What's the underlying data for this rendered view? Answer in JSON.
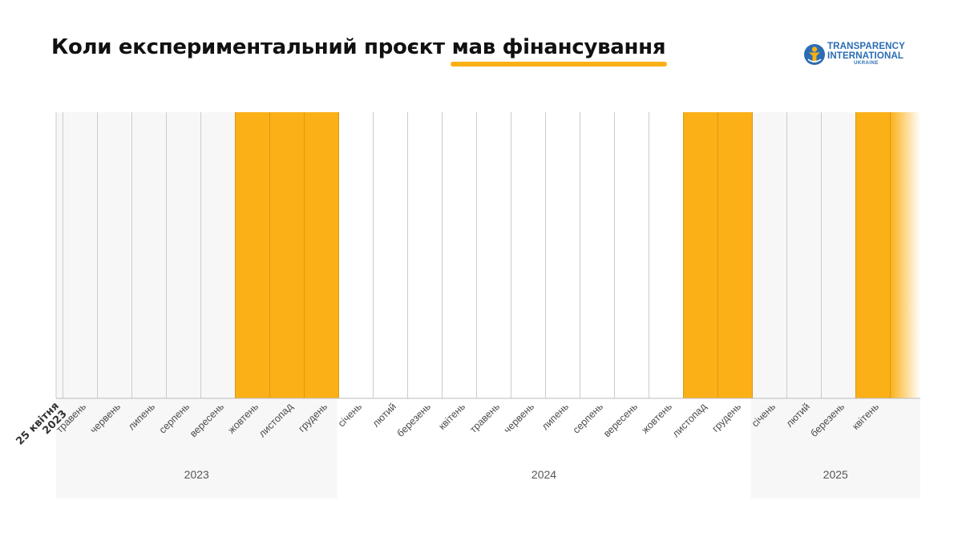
{
  "title": {
    "prefix": "Коли експериментальний проєкт ",
    "highlight": "мав фінансування"
  },
  "logo": {
    "line1": "TRANSPARENCY",
    "line2": "INTERNATIONAL",
    "line3": "UKRAINE",
    "icon": "ti-figure-icon"
  },
  "colors": {
    "funded": "#fbb017",
    "unfunded": "#f7f7f7",
    "year_band": "#f7f7f7",
    "grid": "#cccccc",
    "accent": "#fbb017"
  },
  "chart_data": {
    "type": "timeline",
    "start_label": [
      "25 квітня",
      "2023"
    ],
    "months": [
      {
        "label": "травень",
        "year": 2023,
        "funded": false
      },
      {
        "label": "червень",
        "year": 2023,
        "funded": false
      },
      {
        "label": "липень",
        "year": 2023,
        "funded": false
      },
      {
        "label": "серпень",
        "year": 2023,
        "funded": false
      },
      {
        "label": "вересень",
        "year": 2023,
        "funded": false
      },
      {
        "label": "жовтень",
        "year": 2023,
        "funded": true
      },
      {
        "label": "листопад",
        "year": 2023,
        "funded": true
      },
      {
        "label": "грудень",
        "year": 2023,
        "funded": true
      },
      {
        "label": "січень",
        "year": 2024,
        "funded": false
      },
      {
        "label": "лютий",
        "year": 2024,
        "funded": false
      },
      {
        "label": "березень",
        "year": 2024,
        "funded": false
      },
      {
        "label": "квітень",
        "year": 2024,
        "funded": false
      },
      {
        "label": "травень",
        "year": 2024,
        "funded": false
      },
      {
        "label": "червень",
        "year": 2024,
        "funded": false
      },
      {
        "label": "липень",
        "year": 2024,
        "funded": false
      },
      {
        "label": "серпень",
        "year": 2024,
        "funded": false
      },
      {
        "label": "вересень",
        "year": 2024,
        "funded": false
      },
      {
        "label": "жовтень",
        "year": 2024,
        "funded": false
      },
      {
        "label": "листопад",
        "year": 2024,
        "funded": true
      },
      {
        "label": "грудень",
        "year": 2024,
        "funded": true
      },
      {
        "label": "січень",
        "year": 2025,
        "funded": false
      },
      {
        "label": "лютий",
        "year": 2025,
        "funded": false
      },
      {
        "label": "березень",
        "year": 2025,
        "funded": false
      },
      {
        "label": "квітень",
        "year": 2025,
        "funded": true
      }
    ],
    "trailing_funded": true,
    "years": [
      {
        "label": "2023",
        "shaded": true
      },
      {
        "label": "2024",
        "shaded": false
      },
      {
        "label": "2025",
        "shaded": true
      }
    ]
  }
}
